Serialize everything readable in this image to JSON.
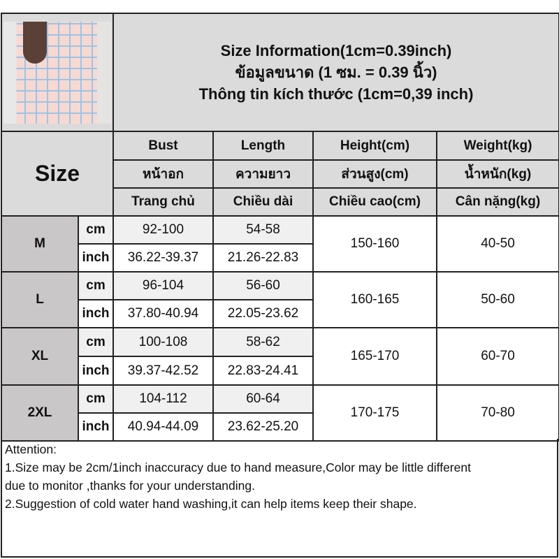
{
  "title_lines": [
    "Size Information(1cm=0.39inch)",
    "ข้อมูลขนาด (1 ซม. = 0.39 นิ้ว)",
    "Thông tin kích thước (1cm=0,39 inch)"
  ],
  "size_header": "Size",
  "columns": [
    {
      "en": "Bust",
      "th": "หน้าอก",
      "vi": "Trang chủ"
    },
    {
      "en": "Length",
      "th": "ความยาว",
      "vi": "Chiều dài"
    },
    {
      "en": "Height(cm)",
      "th": "ส่วนสูง(cm)",
      "vi": "Chiều cao(cm)"
    },
    {
      "en": "Weight(kg)",
      "th": "น้ำหนัก(kg)",
      "vi": "Cân nặng(kg)"
    }
  ],
  "units": {
    "cm": "cm",
    "inch": "inch"
  },
  "rows": [
    {
      "size": "M",
      "bust_cm": "92-100",
      "length_cm": "54-58",
      "bust_inch": "36.22-39.37",
      "length_inch": "21.26-22.83",
      "height": "150-160",
      "weight": "40-50"
    },
    {
      "size": "L",
      "bust_cm": "96-104",
      "length_cm": "56-60",
      "bust_inch": "37.80-40.94",
      "length_inch": "22.05-23.62",
      "height": "160-165",
      "weight": "50-60"
    },
    {
      "size": "XL",
      "bust_cm": "100-108",
      "length_cm": "58-62",
      "bust_inch": "39.37-42.52",
      "length_inch": "22.83-24.41",
      "height": "165-170",
      "weight": "60-70"
    },
    {
      "size": "2XL",
      "bust_cm": "104-112",
      "length_cm": "60-64",
      "bust_inch": "40.94-44.09",
      "length_inch": "23.62-25.20",
      "height": "170-175",
      "weight": "70-80"
    }
  ],
  "attention": [
    "Attention:",
    "1.Size may be 2cm/1inch inaccuracy due to hand measure,Color may be little different",
    "due to monitor ,thanks for your understanding.",
    "2.Suggestion of cold water hand washing,it can help items keep their shape."
  ],
  "colors": {
    "header_bg": "#dcdbdb",
    "size_cell_bg": "#c9c7c7",
    "cm_row_bg": "#f0f0f0",
    "border": "#222222"
  }
}
